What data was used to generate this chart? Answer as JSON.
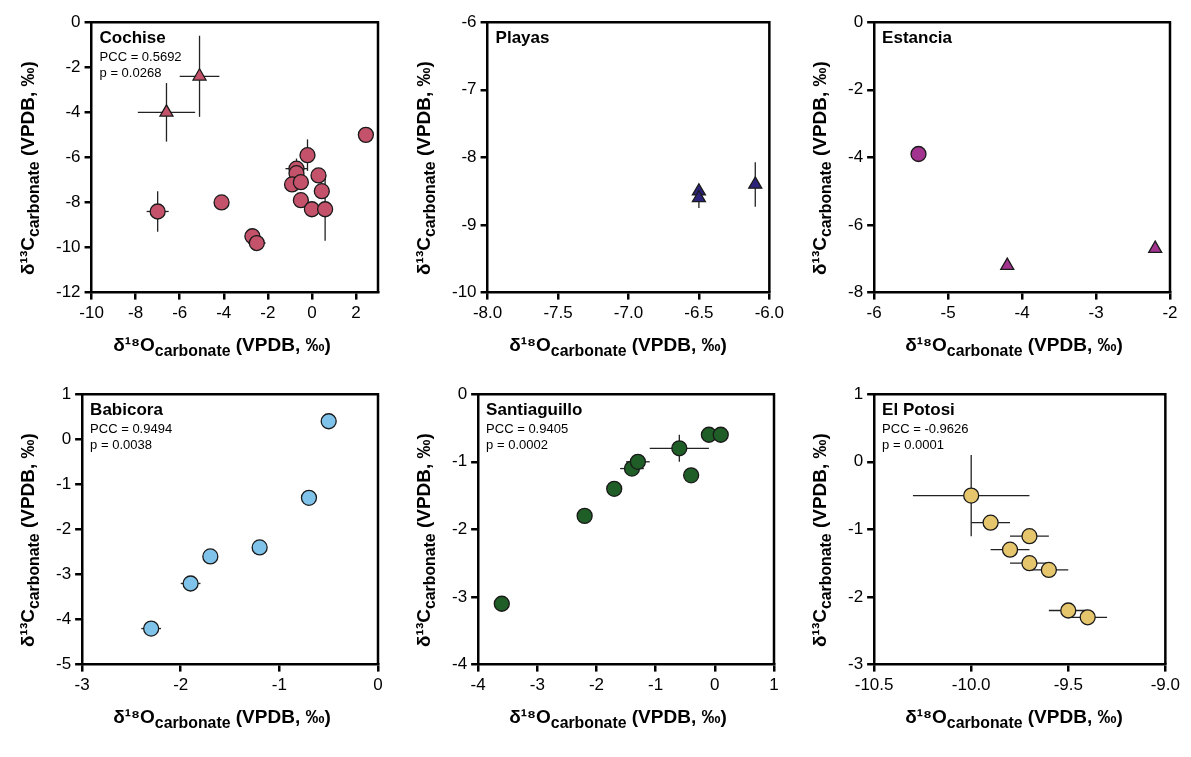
{
  "chart_data": [
    {
      "type": "scatter",
      "title": "Cochise",
      "annotations": [
        "PCC = 0.5692",
        "p = 0.0268"
      ],
      "xlabel": "δ¹⁸O$_{carbonate}$ (VPDB,  ‰)",
      "ylabel": "δ¹³C$_{carbonate}$ (VPDB,  ‰)",
      "xlim": [
        -10,
        3
      ],
      "xticks": [
        -10,
        -8,
        -6,
        -4,
        -2,
        0,
        2
      ],
      "ylim": [
        -12,
        0
      ],
      "yticks": [
        -12,
        -10,
        -8,
        -6,
        -4,
        -2,
        0
      ],
      "series": [
        {
          "color": "#c4526a",
          "marker": "circle",
          "x": [
            -7.0,
            -4.1,
            -2.7,
            -2.5,
            -0.7,
            -0.7,
            -0.2,
            -0.9,
            -0.5,
            -0.5,
            0.3,
            0.45,
            0.0,
            0.6,
            2.45
          ],
          "values": [
            -8.4,
            -8.0,
            -9.5,
            -9.8,
            -6.5,
            -6.7,
            -5.9,
            -7.2,
            -7.1,
            -7.9,
            -6.8,
            -7.5,
            -8.3,
            -8.3,
            -5.0
          ],
          "errors": [
            0.9,
            null,
            null,
            null,
            0.45,
            null,
            0.7,
            null,
            null,
            null,
            null,
            null,
            null,
            1.4,
            null
          ],
          "xerrors": [
            0.5,
            null,
            null,
            0.4,
            0.5,
            null,
            null,
            null,
            null,
            null,
            null,
            null,
            null,
            null,
            null
          ]
        },
        {
          "color": "#c4526a",
          "marker": "triangle",
          "x": [
            -6.6,
            -5.1
          ],
          "values": [
            -4.0,
            -2.4
          ],
          "errors": [
            1.3,
            1.8
          ],
          "xerrors": [
            1.3,
            0.9
          ]
        }
      ]
    },
    {
      "type": "scatter",
      "title": "Playas",
      "xlabel": "δ¹⁸O$_{carbonate}$ (VPDB,  ‰)",
      "ylabel": "δ¹³C$_{carbonate}$ (VPDB,  ‰)",
      "xlim": [
        -8,
        -6
      ],
      "xticks": [
        {
          "value": -8,
          "label": "-8.0"
        },
        -7.5,
        {
          "value": -7,
          "label": "-7.0"
        },
        -6.5,
        {
          "value": -6,
          "label": "-6.0"
        }
      ],
      "ylim": [
        -10,
        -6
      ],
      "yticks": [
        -10,
        -9,
        -8,
        -7,
        -6
      ],
      "series": [
        {
          "color": "#2b2379",
          "marker": "triangle",
          "x": [
            -6.5,
            -6.5,
            -6.1
          ],
          "values": [
            -8.5,
            -8.6,
            -8.4
          ],
          "errors": [
            null,
            0.15,
            0.33
          ]
        }
      ]
    },
    {
      "type": "scatter",
      "title": "Estancia",
      "xlabel": "δ¹⁸O$_{carbonate}$ (VPDB,  ‰)",
      "ylabel": "δ¹³C$_{carbonate}$ (VPDB,  ‰)",
      "xlim": [
        -6,
        -2
      ],
      "xticks": [
        -6,
        -5,
        -4,
        -3,
        -2
      ],
      "ylim": [
        -8,
        0
      ],
      "yticks": [
        -8,
        -6,
        -4,
        -2,
        0
      ],
      "series": [
        {
          "color": "#a2348f",
          "marker": "circle",
          "x": [
            -5.4
          ],
          "values": [
            -3.9
          ]
        },
        {
          "color": "#a2348f",
          "marker": "triangle",
          "x": [
            -4.2,
            -2.2
          ],
          "values": [
            -7.2,
            -6.7
          ]
        }
      ]
    },
    {
      "type": "scatter",
      "title": "Babicora",
      "annotations": [
        "PCC = 0.9494",
        "p = 0.0038"
      ],
      "xlabel": "δ¹⁸O$_{carbonate}$ (VPDB,  ‰)",
      "ylabel": "δ¹³C$_{carbonate}$ (VPDB,  ‰)",
      "xlim": [
        -3,
        0
      ],
      "xticks": [
        -3,
        -2,
        -1,
        0
      ],
      "ylim": [
        -5,
        1
      ],
      "yticks": [
        -5,
        -4,
        -3,
        -2,
        -1,
        0,
        1
      ],
      "series": [
        {
          "color": "#7fc3ea",
          "marker": "circle",
          "x": [
            -2.3,
            -1.9,
            -1.7,
            -1.2,
            -0.7,
            -0.5
          ],
          "values": [
            -4.2,
            -3.2,
            -2.6,
            -2.4,
            -1.3,
            0.4
          ],
          "xerrors": [
            0.1,
            0.1,
            null,
            null,
            null,
            null
          ]
        }
      ]
    },
    {
      "type": "scatter",
      "title": "Santiaguillo",
      "annotations": [
        "PCC = 0.9405",
        "p = 0.0002"
      ],
      "xlabel": "δ¹⁸O$_{carbonate}$ (VPDB,  ‰)",
      "ylabel": "δ¹³C$_{carbonate}$ (VPDB,  ‰)",
      "xlim": [
        -4,
        1
      ],
      "xticks": [
        -4,
        -3,
        -2,
        -1,
        0,
        1
      ],
      "ylim": [
        -4,
        0
      ],
      "yticks": [
        -4,
        -3,
        -2,
        -1,
        0
      ],
      "series": [
        {
          "color": "#1f5e26",
          "marker": "circle",
          "x": [
            -3.6,
            -2.2,
            -1.7,
            -1.4,
            -1.3,
            -0.6,
            -0.4,
            -0.1,
            0.1
          ],
          "values": [
            -3.1,
            -1.8,
            -1.4,
            -1.1,
            -1.0,
            -0.8,
            -1.2,
            -0.6,
            -0.6
          ],
          "errors": [
            null,
            null,
            null,
            null,
            null,
            0.2,
            null,
            null,
            null
          ],
          "xerrors": [
            null,
            null,
            null,
            0.2,
            0.2,
            0.5,
            null,
            null,
            null
          ]
        }
      ]
    },
    {
      "type": "scatter",
      "title": "El Potosi",
      "annotations": [
        "PCC = -0.9626",
        "p = 0.0001"
      ],
      "xlabel": "δ¹⁸O$_{carbonate}$ (VPDB,  ‰)",
      "ylabel": "δ¹³C$_{carbonate}$ (VPDB,  ‰)",
      "xlim": [
        -10.5,
        -9
      ],
      "xticks": [
        -10.5,
        {
          "value": -10,
          "label": "-10.0"
        },
        -9.5,
        {
          "value": -9,
          "label": "-9.0"
        }
      ],
      "ylim": [
        -3,
        1
      ],
      "yticks": [
        -3,
        -2,
        -1,
        0,
        1
      ],
      "series": [
        {
          "color": "#e5c66d",
          "marker": "circle",
          "x": [
            -10.0,
            -9.9,
            -9.7,
            -9.8,
            -9.7,
            -9.6,
            -9.5,
            -9.4
          ],
          "values": [
            -0.5,
            -0.9,
            -1.1,
            -1.3,
            -1.5,
            -1.6,
            -2.2,
            -2.3
          ],
          "errors": [
            0.6,
            null,
            null,
            null,
            null,
            null,
            null,
            null
          ],
          "xerrors": [
            0.3,
            0.1,
            0.1,
            0.1,
            0.1,
            0.1,
            0.1,
            0.1
          ]
        }
      ]
    }
  ]
}
